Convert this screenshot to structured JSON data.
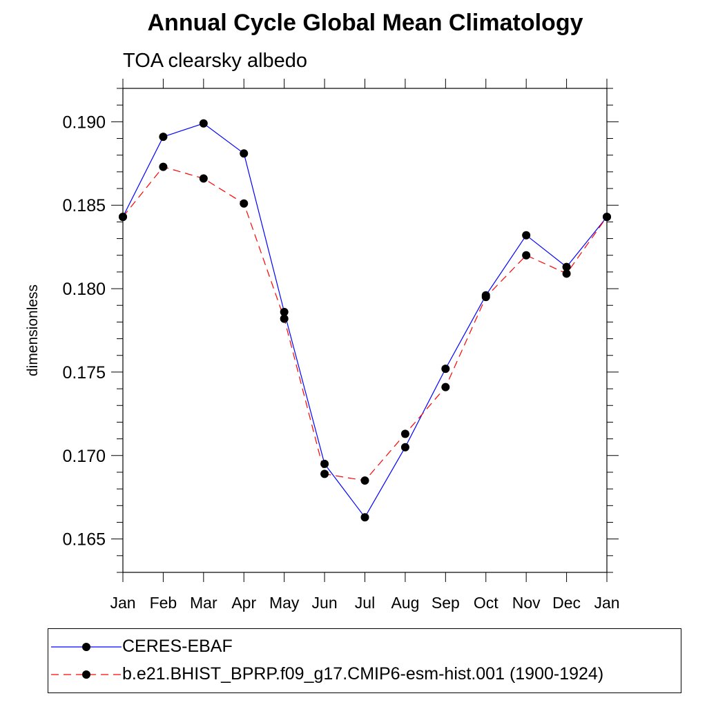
{
  "chart_data": {
    "type": "line",
    "title": "Annual Cycle Global Mean Climatology",
    "subtitle": "TOA clearsky albedo",
    "xlabel": "",
    "ylabel": "dimensionless",
    "categories": [
      "Jan",
      "Feb",
      "Mar",
      "Apr",
      "May",
      "Jun",
      "Jul",
      "Aug",
      "Sep",
      "Oct",
      "Nov",
      "Dec",
      "Jan"
    ],
    "ylim": [
      0.163,
      0.192
    ],
    "yticks": [
      "0.165",
      "0.170",
      "0.175",
      "0.180",
      "0.185",
      "0.190"
    ],
    "series": [
      {
        "name": "CERES-EBAF",
        "color": "#0000ff",
        "dash": "solid",
        "values": [
          0.1843,
          0.1891,
          0.1899,
          0.1881,
          0.1786,
          0.1695,
          0.1663,
          0.1705,
          0.1752,
          0.1796,
          0.1832,
          0.1813,
          0.1843
        ]
      },
      {
        "name": "b.e21.BHIST_BPRP.f09_g17.CMIP6-esm-hist.001 (1900-1924)",
        "color": "#ff0000",
        "dash": "dashed",
        "values": [
          0.1843,
          0.1873,
          0.1866,
          0.1851,
          0.1782,
          0.1689,
          0.1685,
          0.1713,
          0.1741,
          0.1795,
          0.182,
          0.1809,
          0.1843
        ]
      }
    ],
    "legend_placement": "bottom",
    "marker": "filled-circle"
  }
}
